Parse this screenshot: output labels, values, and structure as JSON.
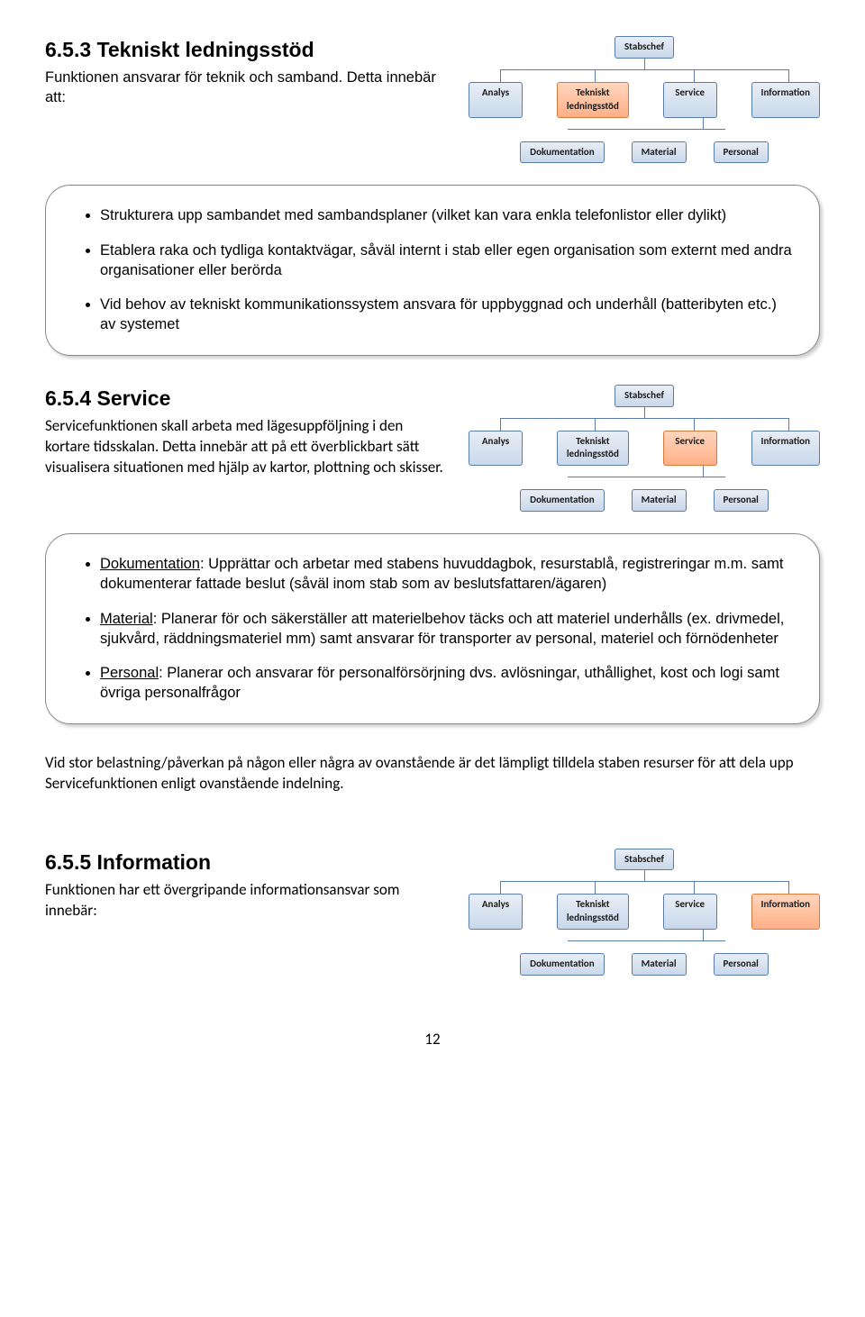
{
  "section1": {
    "heading": "6.5.3 Tekniskt ledningsstöd",
    "body": "Funktionen ansvarar för teknik och samband. Detta innebär att:"
  },
  "callout1": {
    "items": [
      "Strukturera upp sambandet med sambandsplaner (vilket kan vara enkla telefonlistor eller dylikt)",
      "Etablera raka och tydliga kontaktvägar, såväl internt i stab eller egen organisation som externt med andra organisationer eller berörda",
      "Vid behov av tekniskt kommunikationssystem ansvara för uppbyggnad och underhåll (batteribyten etc.) av systemet"
    ]
  },
  "section2": {
    "heading": "6.5.4 Service",
    "body": "Servicefunktionen skall arbeta med lägesuppföljning i den kortare tidsskalan. Detta innebär att på ett överblickbart sätt visualisera situationen med hjälp av kartor, plottning och skisser."
  },
  "callout2": {
    "items": [
      {
        "bold": "Dokumentation",
        "rest": ": Upprättar och arbetar med stabens huvuddagbok, resurstablå, registreringar m.m. samt dokumenterar fattade beslut (såväl inom stab som av beslutsfattaren/ägaren)"
      },
      {
        "bold": "Material",
        "rest": ": Planerar för och säkerställer att materielbehov täcks och att materiel underhålls (ex. drivmedel, sjukvård, räddningsmateriel mm) samt ansvarar för transporter av personal, materiel och förnödenheter"
      },
      {
        "bold": "Personal",
        "rest": ": Planerar och ansvarar för personalförsörjning dvs. avlösningar, uthållighet, kost och logi samt övriga personalfrågor"
      }
    ]
  },
  "between_para": "Vid stor belastning/påverkan på någon eller några av ovanstående är det lämpligt tilldela staben resurser för att dela upp Servicefunktionen enligt ovanstående indelning.",
  "section3": {
    "heading": "6.5.5 Information",
    "body": "Funktionen har ett övergripande informationsansvar som innebär:"
  },
  "page_number": "12",
  "org": {
    "top": "Stabschef",
    "row2": [
      "Analys",
      "Tekniskt ledningsstöd",
      "Service",
      "Information"
    ],
    "row3": [
      "Dokumentation",
      "Material",
      "Personal"
    ],
    "highlight_chart1": 1,
    "highlight_chart2": 2,
    "highlight_chart3": 3,
    "colors": {
      "node_border": "#5a7ca8",
      "node_bg_top": "#e8eef6",
      "node_bg_bottom": "#c9d8ea",
      "highlight_top": "#ffd6bd",
      "highlight_bottom": "#ffb088",
      "highlight_border": "#d87a3a",
      "line": "#5a7ca8"
    },
    "fontsize": 11
  }
}
